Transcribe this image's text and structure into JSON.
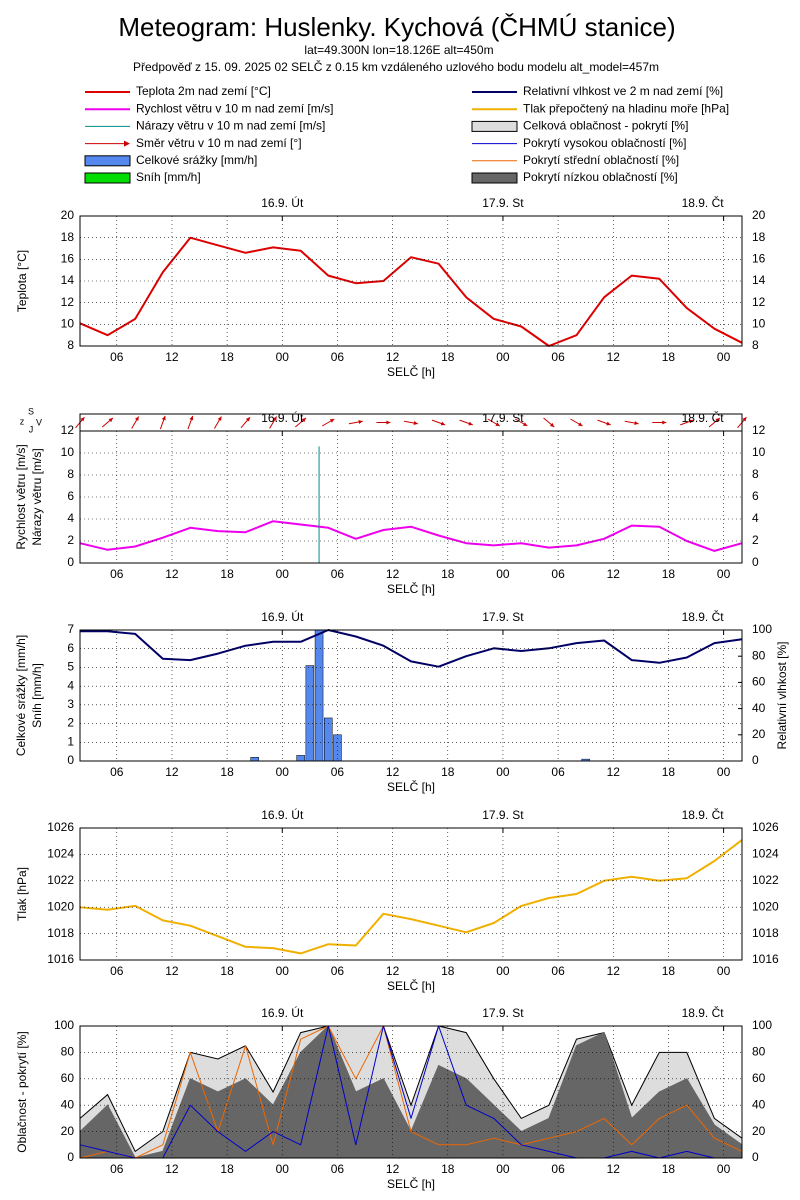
{
  "header": {
    "title": "Meteogram: Huslenky. Kychová (ČHMÚ stanice)",
    "location": "lat=49.300N lon=18.126E alt=450m",
    "forecast": "Předpověď z 15. 09. 2025 02 SELČ z 0.15 km vzdáleného uzlového bodu modelu alt_model=457m"
  },
  "chart_data": [
    {
      "type": "line",
      "xlabel": "SELČ [h]",
      "ylabel": [
        "Teplota [°C]"
      ],
      "grid": true,
      "xlim": [
        2,
        74
      ],
      "xticks": [
        {
          "value": 6,
          "label": "06"
        },
        {
          "value": 12,
          "label": "12"
        },
        {
          "value": 18,
          "label": "18"
        },
        {
          "value": 24,
          "label": "00"
        },
        {
          "value": 30,
          "label": "06"
        },
        {
          "value": 36,
          "label": "12"
        },
        {
          "value": 42,
          "label": "18"
        },
        {
          "value": 48,
          "label": "00"
        },
        {
          "value": 54,
          "label": "06"
        },
        {
          "value": 60,
          "label": "12"
        },
        {
          "value": 66,
          "label": "18"
        },
        {
          "value": 72,
          "label": "00"
        }
      ],
      "days": [
        {
          "value": 24,
          "label": "16.9. Út"
        },
        {
          "value": 48,
          "label": "17.9. St"
        },
        {
          "value": 72,
          "label": "18.9. Čt"
        }
      ],
      "ylim": [
        8,
        20
      ],
      "yticks": [
        8,
        10,
        12,
        14,
        16,
        18,
        20
      ],
      "series": [
        {
          "name": "Teplota 2m nad zemí [°C]",
          "type": "line",
          "color": "#dd0000",
          "x": [
            2,
            5,
            8,
            11,
            14,
            17,
            20,
            23,
            26,
            29,
            32,
            35,
            38,
            41,
            44,
            47,
            50,
            53,
            56,
            59,
            62,
            65,
            68,
            71,
            74
          ],
          "values": [
            10.1,
            9.0,
            10.5,
            14.8,
            18.0,
            17.3,
            16.6,
            17.1,
            16.8,
            14.5,
            13.8,
            14.0,
            16.2,
            15.6,
            12.5,
            10.5,
            9.8,
            8.0,
            9.0,
            12.5,
            14.5,
            14.2,
            11.5,
            9.6,
            8.3
          ]
        }
      ]
    },
    {
      "type": "line",
      "xlabel": "SELČ [h]",
      "ylabel": [
        "Rychlost větru [m/s]",
        "Nárazy větru [m/s]"
      ],
      "grid": true,
      "compass": [
        "S",
        "z",
        "V",
        "J"
      ],
      "xlim": [
        2,
        74
      ],
      "xticks": [
        {
          "value": 6,
          "label": "06"
        },
        {
          "value": 12,
          "label": "12"
        },
        {
          "value": 18,
          "label": "18"
        },
        {
          "value": 24,
          "label": "00"
        },
        {
          "value": 30,
          "label": "06"
        },
        {
          "value": 36,
          "label": "12"
        },
        {
          "value": 42,
          "label": "18"
        },
        {
          "value": 48,
          "label": "00"
        },
        {
          "value": 54,
          "label": "06"
        },
        {
          "value": 60,
          "label": "12"
        },
        {
          "value": 66,
          "label": "18"
        },
        {
          "value": 72,
          "label": "00"
        }
      ],
      "days": [
        {
          "value": 24,
          "label": "16.9. Út"
        },
        {
          "value": 48,
          "label": "17.9. St"
        },
        {
          "value": 72,
          "label": "18.9. Čt"
        }
      ],
      "ylim": [
        0,
        12
      ],
      "yticks": [
        0,
        2,
        4,
        6,
        8,
        10,
        12
      ],
      "series": [
        {
          "name": "Rychlost větru v 10 m nad zemí [m/s]",
          "type": "line",
          "color": "#ee00ee",
          "x": [
            2,
            5,
            8,
            11,
            14,
            17,
            20,
            23,
            26,
            29,
            32,
            35,
            38,
            41,
            44,
            47,
            50,
            53,
            56,
            59,
            62,
            65,
            68,
            71,
            74
          ],
          "values": [
            1.8,
            1.2,
            1.5,
            2.3,
            3.2,
            2.9,
            2.8,
            3.8,
            3.5,
            3.2,
            2.2,
            3.0,
            3.3,
            2.5,
            1.8,
            1.6,
            1.8,
            1.4,
            1.6,
            2.2,
            3.4,
            3.3,
            2.0,
            1.1,
            1.8
          ]
        },
        {
          "name": "Směr větru v 10 m nad zemí [°]",
          "type": "arrows",
          "color": "#cc0000",
          "x": [
            2,
            5,
            8,
            11,
            14,
            17,
            20,
            23,
            26,
            29,
            32,
            35,
            38,
            41,
            44,
            47,
            50,
            53,
            56,
            59,
            62,
            65,
            68,
            71,
            74
          ],
          "values": [
            220,
            230,
            210,
            200,
            200,
            210,
            220,
            210,
            230,
            240,
            260,
            270,
            280,
            290,
            290,
            300,
            300,
            310,
            300,
            290,
            280,
            270,
            250,
            230,
            220
          ]
        },
        {
          "name": "Nárazy větru v 10 m nad zemí [m/s]",
          "type": "spike",
          "color": "#008b8b",
          "x": [
            28
          ],
          "values": [
            10.6
          ]
        }
      ]
    },
    {
      "type": "bar",
      "xlabel": "SELČ [h]",
      "ylabel": [
        "Celkové srážky [mm/h]",
        "Sníh [mm/h]"
      ],
      "y2label": "Relativní vlhkost [%]",
      "grid": true,
      "xlim": [
        2,
        74
      ],
      "xticks": [
        {
          "value": 6,
          "label": "06"
        },
        {
          "value": 12,
          "label": "12"
        },
        {
          "value": 18,
          "label": "18"
        },
        {
          "value": 24,
          "label": "00"
        },
        {
          "value": 30,
          "label": "06"
        },
        {
          "value": 36,
          "label": "12"
        },
        {
          "value": 42,
          "label": "18"
        },
        {
          "value": 48,
          "label": "00"
        },
        {
          "value": 54,
          "label": "06"
        },
        {
          "value": 60,
          "label": "12"
        },
        {
          "value": 66,
          "label": "18"
        },
        {
          "value": 72,
          "label": "00"
        }
      ],
      "days": [
        {
          "value": 24,
          "label": "16.9. Út"
        },
        {
          "value": 48,
          "label": "17.9. St"
        },
        {
          "value": 72,
          "label": "18.9. Čt"
        }
      ],
      "ylim": [
        0,
        7
      ],
      "yticks": [
        0,
        1,
        2,
        3,
        4,
        5,
        6,
        7
      ],
      "y2lim": [
        0,
        100
      ],
      "y2ticks": [
        0,
        20,
        40,
        60,
        80,
        100
      ],
      "series": [
        {
          "name": "Celkové srážky [mm/h]",
          "type": "bar",
          "color": "#5588ee",
          "x": [
            21,
            26,
            27,
            28,
            29,
            30,
            57
          ],
          "values": [
            0.2,
            0.3,
            5.1,
            7.0,
            2.3,
            1.4,
            0.1
          ]
        },
        {
          "name": "Sníh [mm/h]",
          "type": "bar",
          "color": "#00dd00",
          "x": [
            21,
            26,
            27,
            28,
            29,
            30,
            57
          ],
          "values": [
            0,
            0,
            0,
            0,
            0,
            0,
            0
          ]
        },
        {
          "name": "Relativní vlhkost ve 2 m nad zemí [%]",
          "type": "line",
          "axis": "y2",
          "color": "#000066",
          "x": [
            2,
            5,
            8,
            11,
            14,
            17,
            20,
            23,
            26,
            29,
            32,
            35,
            38,
            41,
            44,
            47,
            50,
            53,
            56,
            59,
            62,
            65,
            68,
            71,
            74
          ],
          "values": [
            99,
            99,
            97,
            78,
            77,
            82,
            88,
            91,
            91,
            100,
            95,
            88,
            76,
            72,
            80,
            86,
            84,
            86,
            90,
            92,
            77,
            75,
            79,
            90,
            93
          ]
        }
      ]
    },
    {
      "type": "line",
      "xlabel": "SELČ [h]",
      "ylabel": [
        "Tlak [hPa]"
      ],
      "grid": true,
      "xlim": [
        2,
        74
      ],
      "xticks": [
        {
          "value": 6,
          "label": "06"
        },
        {
          "value": 12,
          "label": "12"
        },
        {
          "value": 18,
          "label": "18"
        },
        {
          "value": 24,
          "label": "00"
        },
        {
          "value": 30,
          "label": "06"
        },
        {
          "value": 36,
          "label": "12"
        },
        {
          "value": 42,
          "label": "18"
        },
        {
          "value": 48,
          "label": "00"
        },
        {
          "value": 54,
          "label": "06"
        },
        {
          "value": 60,
          "label": "12"
        },
        {
          "value": 66,
          "label": "18"
        },
        {
          "value": 72,
          "label": "00"
        }
      ],
      "days": [
        {
          "value": 24,
          "label": "16.9. Út"
        },
        {
          "value": 48,
          "label": "17.9. St"
        },
        {
          "value": 72,
          "label": "18.9. Čt"
        }
      ],
      "ylim": [
        1016,
        1026
      ],
      "yticks": [
        1016,
        1018,
        1020,
        1022,
        1024,
        1026
      ],
      "series": [
        {
          "name": "Tlak přepočtený na hladinu moře [hPa]",
          "type": "line",
          "color": "#f0b000",
          "x": [
            2,
            5,
            8,
            11,
            14,
            17,
            20,
            23,
            26,
            29,
            32,
            35,
            38,
            41,
            44,
            47,
            50,
            53,
            56,
            59,
            62,
            65,
            68,
            71,
            74
          ],
          "values": [
            1020,
            1019.8,
            1020.1,
            1019,
            1018.6,
            1017.8,
            1017,
            1016.9,
            1016.5,
            1017.2,
            1017.1,
            1019.5,
            1019.1,
            1018.6,
            1018.1,
            1018.8,
            1020.1,
            1020.7,
            1021,
            1022,
            1022.3,
            1022,
            1022.2,
            1023.5,
            1025.1
          ]
        }
      ]
    },
    {
      "type": "area",
      "xlabel": "SELČ [h]",
      "ylabel": [
        "Oblačnost - pokrytí [%]"
      ],
      "grid": true,
      "xlim": [
        2,
        74
      ],
      "xticks": [
        {
          "value": 6,
          "label": "06"
        },
        {
          "value": 12,
          "label": "12"
        },
        {
          "value": 18,
          "label": "18"
        },
        {
          "value": 24,
          "label": "00"
        },
        {
          "value": 30,
          "label": "06"
        },
        {
          "value": 36,
          "label": "12"
        },
        {
          "value": 42,
          "label": "18"
        },
        {
          "value": 48,
          "label": "00"
        },
        {
          "value": 54,
          "label": "06"
        },
        {
          "value": 60,
          "label": "12"
        },
        {
          "value": 66,
          "label": "18"
        },
        {
          "value": 72,
          "label": "00"
        }
      ],
      "days": [
        {
          "value": 24,
          "label": "16.9. Út"
        },
        {
          "value": 48,
          "label": "17.9. St"
        },
        {
          "value": 72,
          "label": "18.9. Čt"
        }
      ],
      "ylim": [
        0,
        100
      ],
      "yticks": [
        0,
        20,
        40,
        60,
        80,
        100
      ],
      "series": [
        {
          "name": "Celková oblačnost - pokrytí [%]",
          "type": "area",
          "color": "#dddddd",
          "outline": "#000000",
          "x": [
            2,
            5,
            8,
            11,
            14,
            17,
            20,
            23,
            26,
            29,
            32,
            35,
            38,
            41,
            44,
            47,
            50,
            53,
            56,
            59,
            62,
            65,
            68,
            71,
            74
          ],
          "values": [
            30,
            48,
            5,
            20,
            80,
            75,
            85,
            50,
            95,
            100,
            100,
            100,
            40,
            100,
            95,
            60,
            30,
            40,
            90,
            95,
            40,
            80,
            80,
            30,
            15
          ]
        },
        {
          "name": "Pokrytí nízkou oblačností [%]",
          "type": "area",
          "color": "#666666",
          "x": [
            2,
            5,
            8,
            11,
            14,
            17,
            20,
            23,
            26,
            29,
            32,
            35,
            38,
            41,
            44,
            47,
            50,
            53,
            56,
            59,
            62,
            65,
            68,
            71,
            74
          ],
          "values": [
            20,
            40,
            0,
            5,
            60,
            50,
            60,
            40,
            80,
            100,
            50,
            60,
            20,
            70,
            60,
            40,
            20,
            30,
            85,
            95,
            30,
            50,
            60,
            25,
            10
          ]
        },
        {
          "name": "Pokrytí střední oblačností [%]",
          "type": "line",
          "color": "#ee6600",
          "x": [
            2,
            5,
            8,
            11,
            14,
            17,
            20,
            23,
            26,
            29,
            32,
            35,
            38,
            41,
            44,
            47,
            50,
            53,
            56,
            59,
            62,
            65,
            68,
            71,
            74
          ],
          "values": [
            0,
            5,
            0,
            10,
            80,
            20,
            85,
            10,
            90,
            100,
            60,
            100,
            20,
            10,
            10,
            15,
            10,
            15,
            20,
            30,
            10,
            30,
            40,
            15,
            5
          ]
        },
        {
          "name": "Pokrytí vysokou oblačností [%]",
          "type": "line",
          "color": "#0000cc",
          "x": [
            2,
            5,
            8,
            11,
            14,
            17,
            20,
            23,
            26,
            29,
            32,
            35,
            38,
            41,
            44,
            47,
            50,
            53,
            56,
            59,
            62,
            65,
            68,
            71,
            74
          ],
          "values": [
            10,
            5,
            0,
            0,
            40,
            20,
            5,
            20,
            10,
            100,
            10,
            100,
            30,
            100,
            40,
            30,
            10,
            5,
            0,
            0,
            5,
            0,
            5,
            0,
            0
          ]
        }
      ]
    }
  ]
}
